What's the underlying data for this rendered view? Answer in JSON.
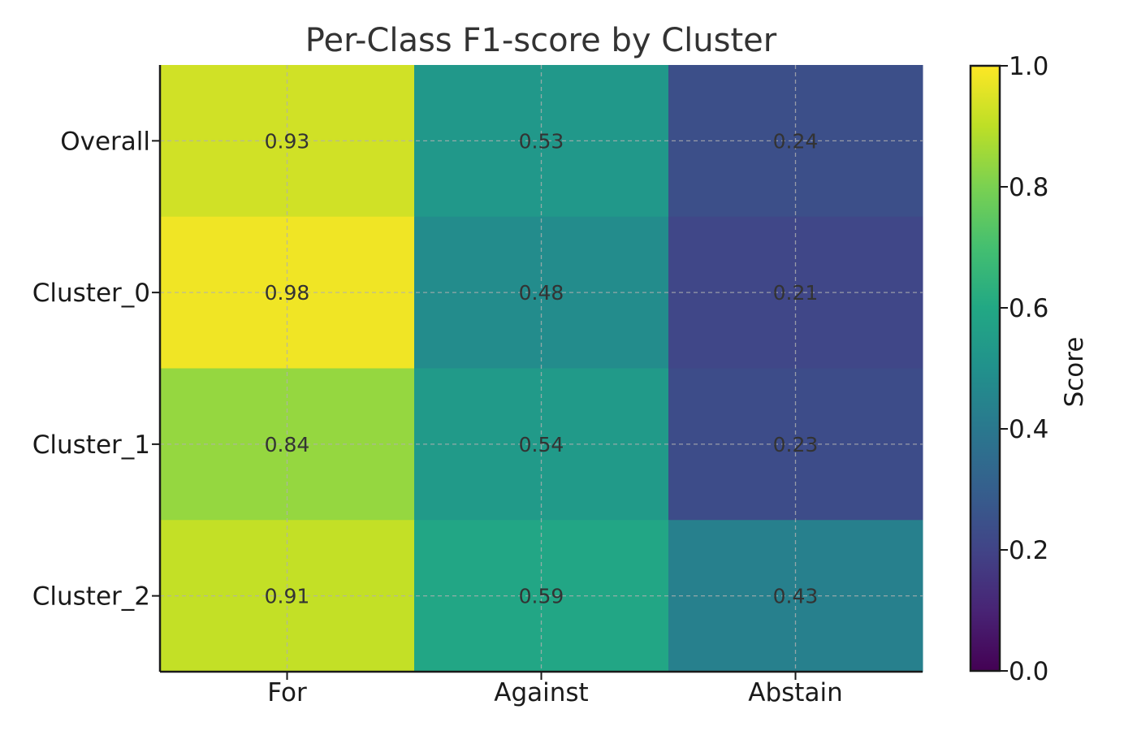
{
  "chart_data": {
    "type": "heatmap",
    "title": "Per-Class F1-score by Cluster",
    "rows": [
      "Overall",
      "Cluster_0",
      "Cluster_1",
      "Cluster_2"
    ],
    "columns": [
      "For",
      "Against",
      "Abstain"
    ],
    "values": [
      [
        0.93,
        0.53,
        0.24
      ],
      [
        0.98,
        0.48,
        0.21
      ],
      [
        0.84,
        0.54,
        0.23
      ],
      [
        0.91,
        0.59,
        0.43
      ]
    ],
    "cell_labels": [
      [
        "0.93",
        "0.53",
        "0.24"
      ],
      [
        "0.98",
        "0.48",
        "0.21"
      ],
      [
        "0.84",
        "0.54",
        "0.23"
      ],
      [
        "0.91",
        "0.59",
        "0.43"
      ]
    ],
    "colormap": "viridis",
    "colorbar": {
      "label": "Score",
      "range": [
        0.0,
        1.0
      ],
      "ticks": [
        0.0,
        0.2,
        0.4,
        0.6,
        0.8,
        1.0
      ],
      "tick_labels": [
        "0.0",
        "0.2",
        "0.4",
        "0.6",
        "0.8",
        "1.0"
      ],
      "position": "right"
    },
    "grid": true
  }
}
